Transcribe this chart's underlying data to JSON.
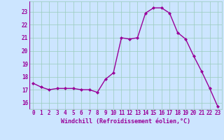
{
  "x": [
    0,
    1,
    2,
    3,
    4,
    5,
    6,
    7,
    8,
    9,
    10,
    11,
    12,
    13,
    14,
    15,
    16,
    17,
    18,
    19,
    20,
    21,
    22,
    23
  ],
  "y": [
    17.5,
    17.2,
    17.0,
    17.1,
    17.1,
    17.1,
    17.0,
    17.0,
    16.8,
    17.8,
    18.3,
    21.0,
    20.9,
    21.0,
    22.9,
    23.3,
    23.3,
    22.9,
    21.4,
    20.9,
    19.6,
    18.4,
    17.1,
    15.7
  ],
  "line_color": "#990099",
  "marker": "D",
  "marker_size": 2.0,
  "line_width": 1.0,
  "bg_color": "#cce5ff",
  "grid_color": "#99ccbb",
  "xlabel": "Windchill (Refroidissement éolien,°C)",
  "xlabel_color": "#990099",
  "tick_color": "#990099",
  "label_fontsize": 5.5,
  "xlabel_fontsize": 6.0,
  "xlim": [
    -0.5,
    23.5
  ],
  "ylim": [
    15.5,
    23.8
  ],
  "yticks": [
    16,
    17,
    18,
    19,
    20,
    21,
    22,
    23
  ],
  "xticks": [
    0,
    1,
    2,
    3,
    4,
    5,
    6,
    7,
    8,
    9,
    10,
    11,
    12,
    13,
    14,
    15,
    16,
    17,
    18,
    19,
    20,
    21,
    22,
    23
  ]
}
